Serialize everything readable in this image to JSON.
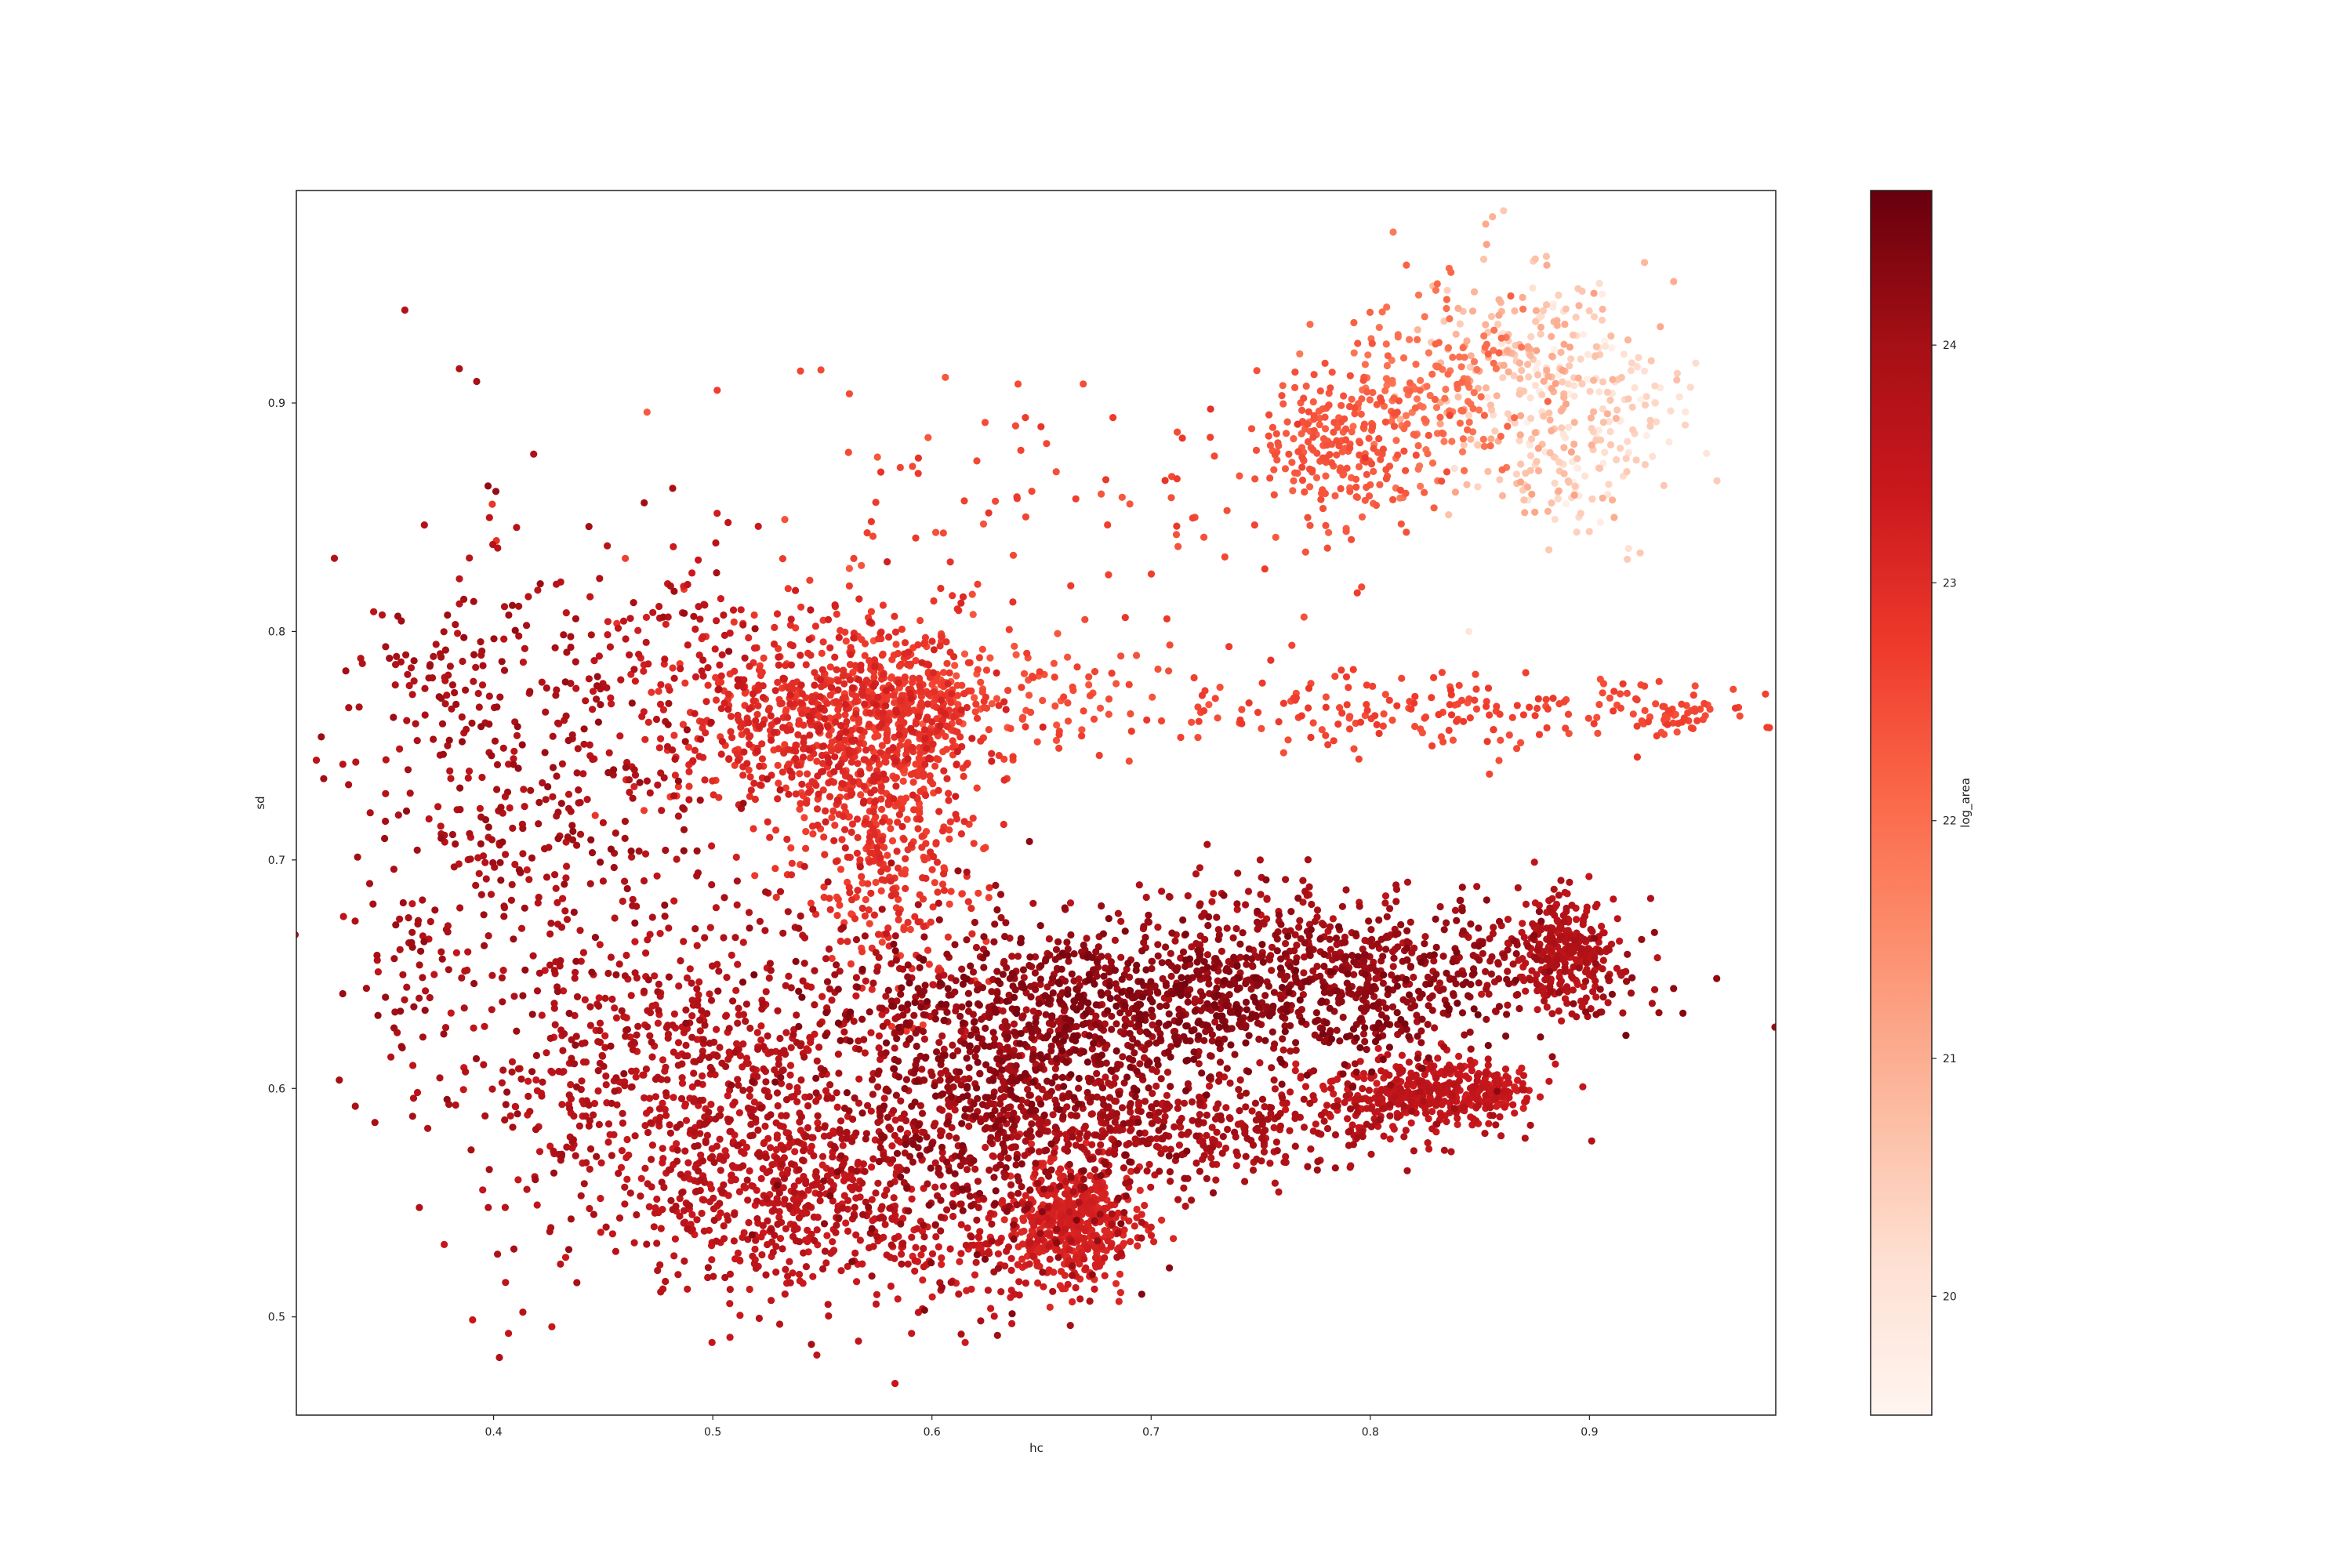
{
  "chart_data": {
    "type": "scatter",
    "title": "",
    "xlabel": "hc",
    "ylabel": "sd",
    "xlim": [
      0.31,
      0.985
    ],
    "ylim": [
      0.457,
      0.993
    ],
    "xticks": [
      0.4,
      0.5,
      0.6,
      0.7,
      0.8,
      0.9
    ],
    "xtick_labels": [
      "0.4",
      "0.5",
      "0.6",
      "0.7",
      "0.8",
      "0.9"
    ],
    "yticks": [
      0.5,
      0.6,
      0.7,
      0.8,
      0.9
    ],
    "ytick_labels": [
      "0.5",
      "0.6",
      "0.7",
      "0.8",
      "0.9"
    ],
    "grid": false,
    "colormap": "Reds",
    "colorbar": {
      "label": "log_area",
      "range": [
        19.5,
        24.65
      ],
      "ticks": [
        20,
        21,
        22,
        23,
        24
      ],
      "tick_labels": [
        "20",
        "21",
        "22",
        "23",
        "24"
      ],
      "colors": [
        "#fff5f0",
        "#fee0d2",
        "#fcbba1",
        "#fc9272",
        "#fb6a4a",
        "#ef3b2c",
        "#cb181d",
        "#a50f15",
        "#67000d"
      ]
    },
    "point_groups": [
      {
        "name": "upper right cloud",
        "center": [
          0.785,
          0.883
        ],
        "spread": [
          0.018,
          0.018
        ],
        "n": 220,
        "c": [
          22.2,
          22.5
        ]
      },
      {
        "name": "upper right cloud",
        "center": [
          0.83,
          0.905
        ],
        "spread": [
          0.02,
          0.02
        ],
        "n": 170,
        "c": [
          21.8,
          22.2
        ]
      },
      {
        "name": "upper right cloud",
        "center": [
          0.87,
          0.918
        ],
        "spread": [
          0.022,
          0.022
        ],
        "n": 170,
        "c": [
          20.4,
          21.2
        ]
      },
      {
        "name": "upper right cloud",
        "center": [
          0.9,
          0.9
        ],
        "spread": [
          0.025,
          0.025
        ],
        "n": 150,
        "c": [
          19.6,
          20.6
        ]
      },
      {
        "name": "upper right cloud",
        "center": [
          0.88,
          0.87
        ],
        "spread": [
          0.02,
          0.015
        ],
        "n": 60,
        "c": [
          20.2,
          21.2
        ]
      },
      {
        "name": "scattered mid band",
        "center": [
          0.65,
          0.85
        ],
        "spread": [
          0.09,
          0.035
        ],
        "n": 110,
        "c": [
          22.3,
          22.9
        ]
      },
      {
        "name": "central cluster",
        "center": [
          0.55,
          0.76
        ],
        "spread": [
          0.035,
          0.022
        ],
        "n": 650,
        "c": [
          22.7,
          23.3
        ]
      },
      {
        "name": "central cluster",
        "center": [
          0.585,
          0.765
        ],
        "spread": [
          0.02,
          0.02
        ],
        "n": 350,
        "c": [
          22.6,
          22.9
        ]
      },
      {
        "name": "central stem",
        "center": [
          0.58,
          0.7
        ],
        "spread": [
          0.022,
          0.03
        ],
        "n": 320,
        "c": [
          22.6,
          23.1
        ]
      },
      {
        "name": "central cluster",
        "center": [
          0.62,
          0.77
        ],
        "spread": [
          0.04,
          0.012
        ],
        "n": 130,
        "c": [
          22.3,
          22.7
        ]
      },
      {
        "name": "horizontal band",
        "center": [
          0.84,
          0.765
        ],
        "spread": [
          0.07,
          0.008
        ],
        "n": 200,
        "c": [
          22.4,
          22.8
        ]
      },
      {
        "name": "band tail",
        "center": [
          0.94,
          0.762
        ],
        "spread": [
          0.01,
          0.004
        ],
        "n": 30,
        "c": [
          22.4,
          22.7
        ]
      },
      {
        "name": "left block",
        "center": [
          0.42,
          0.72
        ],
        "spread": [
          0.04,
          0.065
        ],
        "n": 480,
        "c": [
          23.6,
          24.2
        ]
      },
      {
        "name": "left edge",
        "center": [
          0.37,
          0.782
        ],
        "spread": [
          0.012,
          0.01
        ],
        "n": 40,
        "c": [
          23.7,
          24.1
        ]
      },
      {
        "name": "left edge",
        "center": [
          0.36,
          0.645
        ],
        "spread": [
          0.008,
          0.015
        ],
        "n": 30,
        "c": [
          23.8,
          24.2
        ]
      },
      {
        "name": "lower left",
        "center": [
          0.5,
          0.6
        ],
        "spread": [
          0.055,
          0.04
        ],
        "n": 900,
        "c": [
          23.4,
          24.0
        ]
      },
      {
        "name": "lower left",
        "center": [
          0.54,
          0.55
        ],
        "spread": [
          0.03,
          0.02
        ],
        "n": 350,
        "c": [
          23.3,
          23.7
        ]
      },
      {
        "name": "upper streak",
        "center": [
          0.72,
          0.635
        ],
        "spread": [
          0.07,
          0.015
        ],
        "n": 800,
        "c": [
          24.0,
          24.5
        ]
      },
      {
        "name": "upper streak",
        "center": [
          0.79,
          0.655
        ],
        "spread": [
          0.06,
          0.013
        ],
        "n": 450,
        "c": [
          23.9,
          24.3
        ]
      },
      {
        "name": "streak end",
        "center": [
          0.89,
          0.66
        ],
        "spread": [
          0.012,
          0.012
        ],
        "n": 280,
        "c": [
          23.5,
          23.9
        ]
      },
      {
        "name": "lower streak",
        "center": [
          0.72,
          0.583
        ],
        "spread": [
          0.05,
          0.012
        ],
        "n": 400,
        "c": [
          23.6,
          24.1
        ]
      },
      {
        "name": "lower streak",
        "center": [
          0.82,
          0.597
        ],
        "spread": [
          0.02,
          0.008
        ],
        "n": 330,
        "c": [
          23.3,
          23.7
        ]
      },
      {
        "name": "streak end",
        "center": [
          0.855,
          0.6
        ],
        "spread": [
          0.012,
          0.005
        ],
        "n": 110,
        "c": [
          23.2,
          23.5
        ]
      },
      {
        "name": "middle mass",
        "center": [
          0.63,
          0.6
        ],
        "spread": [
          0.04,
          0.035
        ],
        "n": 900,
        "c": [
          23.8,
          24.4
        ]
      },
      {
        "name": "bottom lobe",
        "center": [
          0.665,
          0.543
        ],
        "spread": [
          0.015,
          0.013
        ],
        "n": 450,
        "c": [
          23.0,
          23.3
        ]
      },
      {
        "name": "bottom lobe",
        "center": [
          0.625,
          0.53
        ],
        "spread": [
          0.03,
          0.012
        ],
        "n": 130,
        "c": [
          23.2,
          23.6
        ]
      },
      {
        "name": "upper left sparse",
        "center": [
          0.48,
          0.79
        ],
        "spread": [
          0.02,
          0.025
        ],
        "n": 80,
        "c": [
          23.2,
          23.7
        ]
      },
      {
        "name": "far right drift",
        "center": [
          0.76,
          0.68
        ],
        "spread": [
          0.05,
          0.01
        ],
        "n": 70,
        "c": [
          23.6,
          24.0
        ]
      }
    ],
    "points": [
      {
        "x": 0.545,
        "y": 0.488,
        "c": 24.0
      },
      {
        "x": 0.438,
        "y": 0.515,
        "c": 23.9
      },
      {
        "x": 0.901,
        "y": 0.577,
        "c": 23.8
      },
      {
        "x": 0.47,
        "y": 0.896,
        "c": 22.3
      },
      {
        "x": 0.54,
        "y": 0.914,
        "c": 22.6
      },
      {
        "x": 0.845,
        "y": 0.8,
        "c": 20.0
      },
      {
        "x": 0.955,
        "y": 0.766,
        "c": 22.5
      }
    ]
  }
}
